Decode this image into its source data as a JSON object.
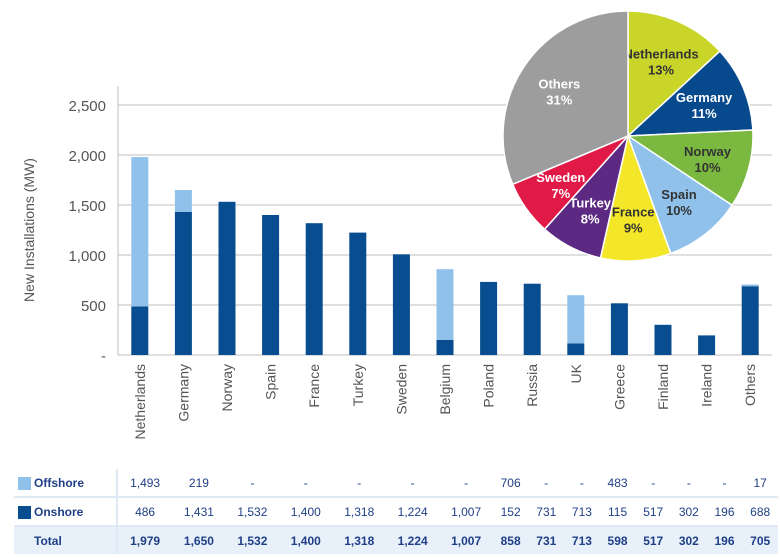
{
  "colors": {
    "offshore": "#8fc1ea",
    "onshore": "#084d8f",
    "axis_text": "#555555",
    "grid": "#bfbfbf",
    "table_text": "#1f3f86"
  },
  "chart_data": [
    {
      "type": "bar",
      "stacked": true,
      "ylabel": "New  Installations (MW)",
      "ylim": [
        0,
        2500
      ],
      "yticks": [
        0,
        500,
        1000,
        1500,
        2000,
        2500
      ],
      "ytick_labels": [
        "-",
        "500",
        "1,000",
        "1,500",
        "2,000",
        "2,500"
      ],
      "grid": true,
      "categories": [
        "Netherlands",
        "Germany",
        "Norway",
        "Spain",
        "France",
        "Turkey",
        "Sweden",
        "Belgium",
        "Poland",
        "Russia",
        "UK",
        "Greece",
        "Finland",
        "Ireland",
        "Others"
      ],
      "series": [
        {
          "name": "Onshore",
          "values": [
            486,
            1431,
            1532,
            1400,
            1318,
            1224,
            1007,
            152,
            731,
            713,
            115,
            517,
            302,
            196,
            688
          ]
        },
        {
          "name": "Offshore",
          "values": [
            1493,
            219,
            0,
            0,
            0,
            0,
            0,
            706,
            0,
            0,
            483,
            0,
            0,
            0,
            17
          ]
        }
      ]
    },
    {
      "type": "pie",
      "slices": [
        {
          "label": "Netherlands",
          "value": 13,
          "pct": "13%",
          "color": "#cad52a"
        },
        {
          "label": "Germany",
          "value": 11,
          "pct": "11%",
          "color": "#07498d"
        },
        {
          "label": "Norway",
          "value": 10,
          "pct": "10%",
          "color": "#7ab840"
        },
        {
          "label": "Spain",
          "value": 10,
          "pct": "10%",
          "color": "#8fc1ea"
        },
        {
          "label": "France",
          "value": 9,
          "pct": "9%",
          "color": "#f4e72a"
        },
        {
          "label": "Turkey",
          "value": 8,
          "pct": "8%",
          "color": "#5d2a83"
        },
        {
          "label": "Sweden",
          "value": 7,
          "pct": "7%",
          "color": "#e11947"
        },
        {
          "label": "Others",
          "value": 31,
          "pct": "31%",
          "color": "#9d9d9d"
        }
      ]
    }
  ],
  "table": {
    "rows": [
      {
        "label": "Offshore",
        "color": "#8fc1ea",
        "cells": [
          "1,493",
          "219",
          "-",
          "-",
          "-",
          "-",
          "-",
          "706",
          "-",
          "-",
          "483",
          "-",
          "-",
          "-",
          "17"
        ]
      },
      {
        "label": "Onshore",
        "color": "#084d8f",
        "cells": [
          "486",
          "1,431",
          "1,532",
          "1,400",
          "1,318",
          "1,224",
          "1,007",
          "152",
          "731",
          "713",
          "115",
          "517",
          "302",
          "196",
          "688"
        ]
      },
      {
        "label": "Total",
        "color": "",
        "cells": [
          "1,979",
          "1,650",
          "1,532",
          "1,400",
          "1,318",
          "1,224",
          "1,007",
          "858",
          "731",
          "713",
          "598",
          "517",
          "302",
          "196",
          "705"
        ]
      }
    ]
  }
}
